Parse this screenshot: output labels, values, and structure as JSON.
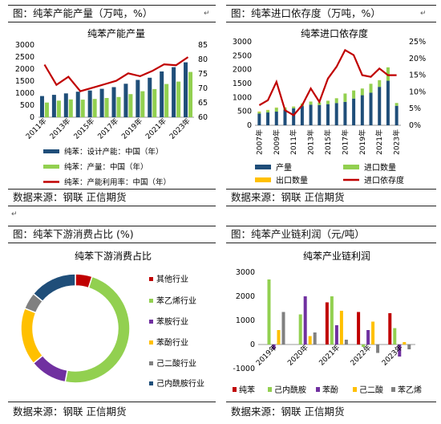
{
  "panels": {
    "p1": {
      "header": "图：纯苯产能产量（万吨，%）",
      "source": "数据来源：钢联    正信期货"
    },
    "p2": {
      "header": "图：纯苯进口依存度（万吨，%）",
      "source": "数据来源：钢联    正信期货"
    },
    "p3": {
      "header": "图：纯苯下游消费占比 (%)",
      "source": "数据来源：钢联    正信期货"
    },
    "p4": {
      "header": "图：纯苯产业链利润（元/吨）",
      "source": "数据来源：钢联    正信期货"
    }
  },
  "colors": {
    "navy": "#1F4E79",
    "green": "#92D050",
    "red": "#C00000",
    "yellow": "#FFC000",
    "blue": "#2E75B6",
    "purple": "#7030A0",
    "gray": "#808080"
  },
  "chart_data": [
    {
      "type": "bar",
      "title": "纯苯产能产量",
      "categories": [
        "2011年",
        "2012年",
        "2013年",
        "2014年",
        "2015年",
        "2016年",
        "2017年",
        "2018年",
        "2019年",
        "2020年",
        "2021年",
        "2022年",
        "2023年"
      ],
      "x_tick_labels": [
        "2011年",
        "2013年",
        "2015年",
        "2017年",
        "2019年",
        "2021年",
        "2023年"
      ],
      "ylim": [
        0,
        3000
      ],
      "y_ticks": [
        "0",
        "500",
        "1000",
        "1500",
        "2000",
        "2500",
        "3000"
      ],
      "y2lim": [
        60,
        85
      ],
      "y2_ticks": [
        "60",
        "65",
        "70",
        "75",
        "80",
        "85"
      ],
      "series": [
        {
          "name": "纯苯：设计产能：中国（年）",
          "type": "bar",
          "axis": "left",
          "color": "#1F4E79",
          "values": [
            880,
            930,
            990,
            1060,
            1110,
            1180,
            1250,
            1390,
            1550,
            1640,
            1900,
            2080,
            2280
          ]
        },
        {
          "name": "纯苯：产量：中国（年）",
          "type": "bar",
          "axis": "left",
          "color": "#92D050",
          "values": [
            610,
            690,
            740,
            730,
            760,
            800,
            840,
            960,
            1080,
            1170,
            1380,
            1480,
            1880
          ]
        },
        {
          "name": "纯苯：产能利用率：中国（年）",
          "type": "line",
          "axis": "right",
          "color": "#C00000",
          "values": [
            78.2,
            71.2,
            74,
            69,
            70.2,
            71.4,
            72.6,
            75.2,
            74.2,
            76,
            78.3,
            78,
            80.8
          ]
        }
      ]
    },
    {
      "type": "bar",
      "title": "纯苯进口依存度",
      "categories": [
        "2007年",
        "2008年",
        "2009年",
        "2010年",
        "2011年",
        "2012年",
        "2013年",
        "2014年",
        "2015年",
        "2016年",
        "2017年",
        "2018年",
        "2019年",
        "2020年",
        "2021年",
        "2022年",
        "2023年"
      ],
      "x_tick_labels": [
        "2007年",
        "2009年",
        "2011年",
        "2013年",
        "2015年",
        "2017年",
        "2019年",
        "2021年",
        "2023年"
      ],
      "ylim": [
        0,
        3000
      ],
      "y_ticks": [
        "0",
        "500",
        "1000",
        "1500",
        "2000",
        "2500",
        "3000"
      ],
      "y2lim": [
        0,
        25
      ],
      "y2_ticks": [
        "0%",
        "5%",
        "10%",
        "15%",
        "20%",
        "25%"
      ],
      "series": [
        {
          "name": "产量",
          "type": "bar",
          "axis": "left",
          "color": "#1F4E79",
          "values": [
            420,
            460,
            490,
            560,
            610,
            690,
            740,
            730,
            760,
            800,
            840,
            960,
            1080,
            1170,
            1380,
            1600,
            700
          ]
        },
        {
          "name": "进口数量",
          "type": "bar",
          "axis": "left",
          "color": "#92D050",
          "values": [
            60,
            80,
            140,
            80,
            60,
            90,
            110,
            90,
            120,
            170,
            300,
            290,
            240,
            320,
            240,
            480,
            100
          ]
        },
        {
          "name": "出口数量",
          "type": "bar",
          "axis": "left",
          "color": "#FFC000",
          "values": [
            15,
            12,
            8,
            5,
            5,
            5,
            3,
            3,
            2,
            2,
            1,
            1,
            1,
            1,
            1,
            1,
            1
          ]
        },
        {
          "name": "进口依存度",
          "type": "line",
          "axis": "right",
          "color": "#C00000",
          "values": [
            6,
            7.5,
            13,
            4.5,
            3,
            6,
            11,
            7,
            14,
            17.5,
            22.5,
            21,
            15,
            14.5,
            17,
            15,
            15
          ]
        }
      ]
    },
    {
      "type": "pie",
      "title": "纯苯下游消费占比",
      "categories": [
        "其他行业",
        "苯乙烯行业",
        "苯胺行业",
        "苯酚行业",
        "己二酸行业",
        "己内酰胺行业"
      ],
      "values": [
        5,
        48,
        11,
        17,
        5,
        14
      ],
      "colors": [
        "#C00000",
        "#92D050",
        "#7030A0",
        "#FFC000",
        "#808080",
        "#1F4E79"
      ]
    },
    {
      "type": "bar",
      "title": "纯苯产业链利润",
      "categories": [
        "2019年",
        "2020年",
        "2021年",
        "2022年",
        "2023年"
      ],
      "ylim": [
        -1000,
        3000
      ],
      "y_ticks": [
        "-1000",
        "0",
        "1000",
        "2000",
        "3000"
      ],
      "series": [
        {
          "name": "纯苯",
          "color": "#C00000",
          "values": [
            0,
            0,
            1750,
            1350,
            1300
          ]
        },
        {
          "name": "己内酰胺",
          "color": "#92D050",
          "values": [
            2700,
            1250,
            2000,
            -100,
            680
          ]
        },
        {
          "name": "苯酚",
          "color": "#7030A0",
          "values": [
            -200,
            2000,
            800,
            600,
            -500
          ]
        },
        {
          "name": "己二酸",
          "color": "#FFC000",
          "values": [
            600,
            350,
            1400,
            950,
            100
          ]
        },
        {
          "name": "苯乙烯",
          "color": "#808080",
          "values": [
            1350,
            500,
            200,
            -350,
            -200
          ]
        }
      ]
    }
  ]
}
